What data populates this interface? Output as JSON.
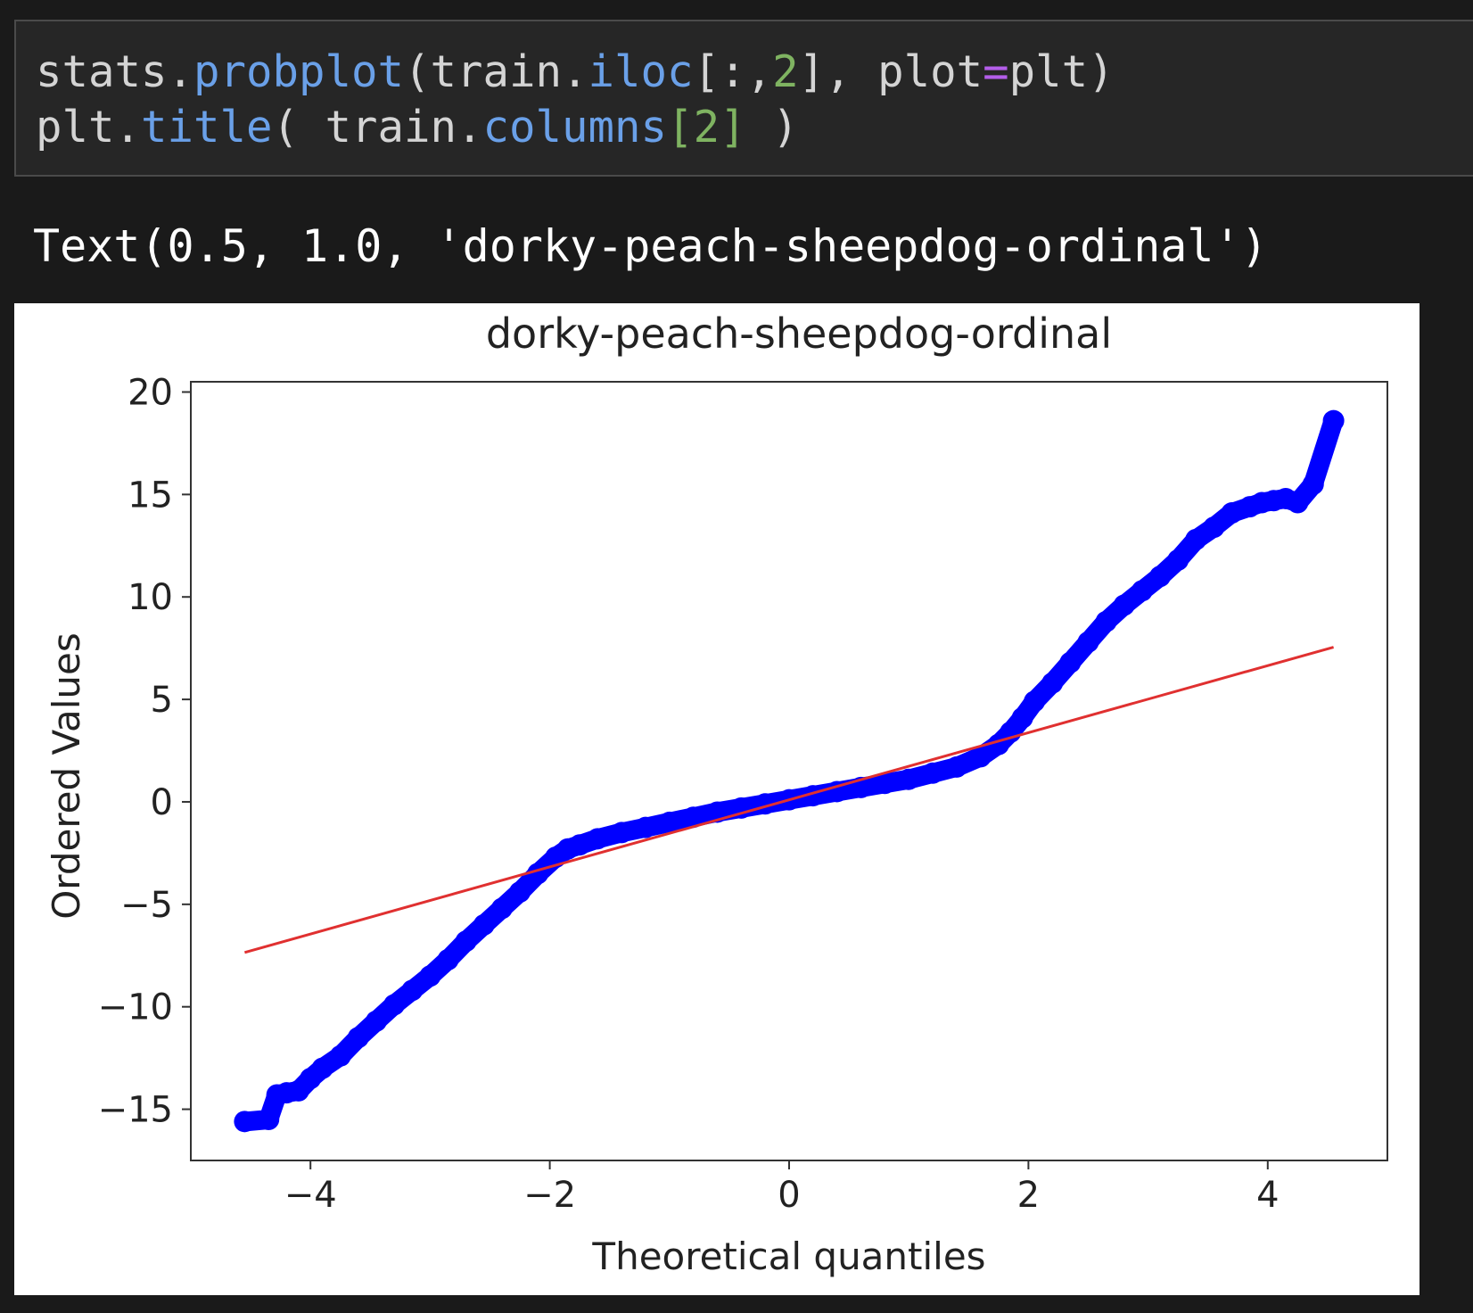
{
  "code_cell": {
    "line1": [
      {
        "t": "stats.",
        "c": "plain"
      },
      {
        "t": "probplot",
        "c": "fn"
      },
      {
        "t": "(train.",
        "c": "plain"
      },
      {
        "t": "iloc",
        "c": "fn"
      },
      {
        "t": "[:,",
        "c": "plain"
      },
      {
        "t": "2",
        "c": "num"
      },
      {
        "t": "], plot",
        "c": "plain"
      },
      {
        "t": "=",
        "c": "op"
      },
      {
        "t": "plt)",
        "c": "plain"
      }
    ],
    "line2": [
      {
        "t": "plt.",
        "c": "plain"
      },
      {
        "t": "title",
        "c": "fn"
      },
      {
        "t": "( train.",
        "c": "plain"
      },
      {
        "t": "columns",
        "c": "fn"
      },
      {
        "t": "[2]",
        "c": "num"
      },
      {
        "t": " )",
        "c": "plain"
      }
    ]
  },
  "output": {
    "text": "Text(0.5, 1.0, 'dorky-peach-sheepdog-ordinal')"
  },
  "colors": {
    "points": "#0000ff",
    "fit_line": "#e03030"
  },
  "chart_data": {
    "type": "scatter",
    "title": "dorky-peach-sheepdog-ordinal",
    "xlabel": "Theoretical quantiles",
    "ylabel": "Ordered Values",
    "xlim": [
      -5.0,
      5.0
    ],
    "ylim": [
      -17.5,
      20.5
    ],
    "x_ticks": [
      -4,
      -2,
      0,
      2,
      4
    ],
    "x_tick_labels": [
      "−4",
      "−2",
      "0",
      "2",
      "4"
    ],
    "y_ticks": [
      -15,
      -10,
      -5,
      0,
      5,
      10,
      15,
      20
    ],
    "y_tick_labels": [
      "−15",
      "−10",
      "−5",
      "0",
      "5",
      "10",
      "15",
      "20"
    ],
    "grid": false,
    "series": [
      {
        "kind": "points",
        "x": [
          -4.55,
          -4.35,
          -4.28,
          -4.2,
          -4.1,
          -4.0,
          -3.9,
          -3.75,
          -3.6,
          -3.45,
          -3.3,
          -3.15,
          -3.0,
          -2.85,
          -2.7,
          -2.55,
          -2.4,
          -2.25,
          -2.1,
          -1.95,
          -1.85,
          -1.75,
          -1.6,
          -1.4,
          -1.2,
          -1.0,
          -0.8,
          -0.6,
          -0.4,
          -0.2,
          0.0,
          0.2,
          0.4,
          0.6,
          0.8,
          1.0,
          1.2,
          1.4,
          1.6,
          1.75,
          1.85,
          1.95,
          2.05,
          2.2,
          2.35,
          2.5,
          2.65,
          2.8,
          2.95,
          3.1,
          3.25,
          3.4,
          3.55,
          3.7,
          3.85,
          3.95,
          4.05,
          4.15,
          4.25,
          4.38,
          4.55
        ],
        "y": [
          -15.6,
          -15.5,
          -14.3,
          -14.2,
          -14.1,
          -13.5,
          -13.0,
          -12.4,
          -11.5,
          -10.7,
          -9.9,
          -9.2,
          -8.5,
          -7.7,
          -6.8,
          -6.0,
          -5.2,
          -4.4,
          -3.5,
          -2.7,
          -2.3,
          -2.1,
          -1.8,
          -1.5,
          -1.25,
          -1.0,
          -0.75,
          -0.5,
          -0.3,
          -0.1,
          0.1,
          0.3,
          0.5,
          0.7,
          0.9,
          1.1,
          1.4,
          1.7,
          2.2,
          2.8,
          3.4,
          4.1,
          4.9,
          5.8,
          6.8,
          7.8,
          8.8,
          9.6,
          10.3,
          11.0,
          11.8,
          12.8,
          13.4,
          14.1,
          14.4,
          14.6,
          14.7,
          14.8,
          14.6,
          15.5,
          18.6
        ]
      },
      {
        "kind": "fit_line",
        "x": [
          -4.55,
          4.55
        ],
        "y": [
          -7.35,
          7.55
        ]
      }
    ]
  }
}
